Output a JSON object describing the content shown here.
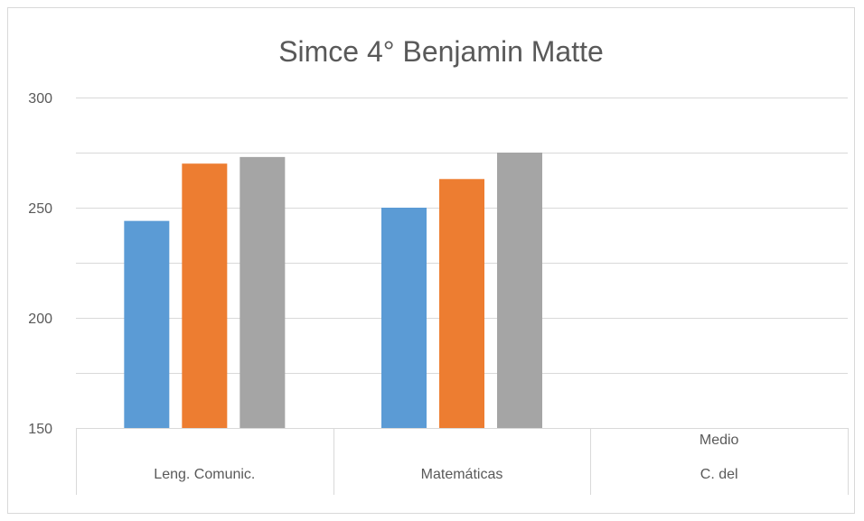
{
  "chart_data": {
    "type": "bar",
    "title": "Simce 4° Benjamin Matte",
    "categories": [
      {
        "lines": [
          "Leng. Comunic."
        ]
      },
      {
        "lines": [
          "Matemáticas"
        ]
      },
      {
        "lines": [
          "Medio",
          "C. del"
        ]
      }
    ],
    "series": [
      {
        "color": "#5b9bd5",
        "values": [
          244,
          250,
          null
        ]
      },
      {
        "color": "#ed7d31",
        "values": [
          270,
          263,
          null
        ]
      },
      {
        "color": "#a5a5a5",
        "values": [
          273,
          275,
          null
        ]
      }
    ],
    "ylim": [
      150,
      300
    ],
    "yticks": [
      150,
      200,
      250,
      300
    ],
    "gridlines_every": 25,
    "grid": true,
    "legend": "none"
  }
}
